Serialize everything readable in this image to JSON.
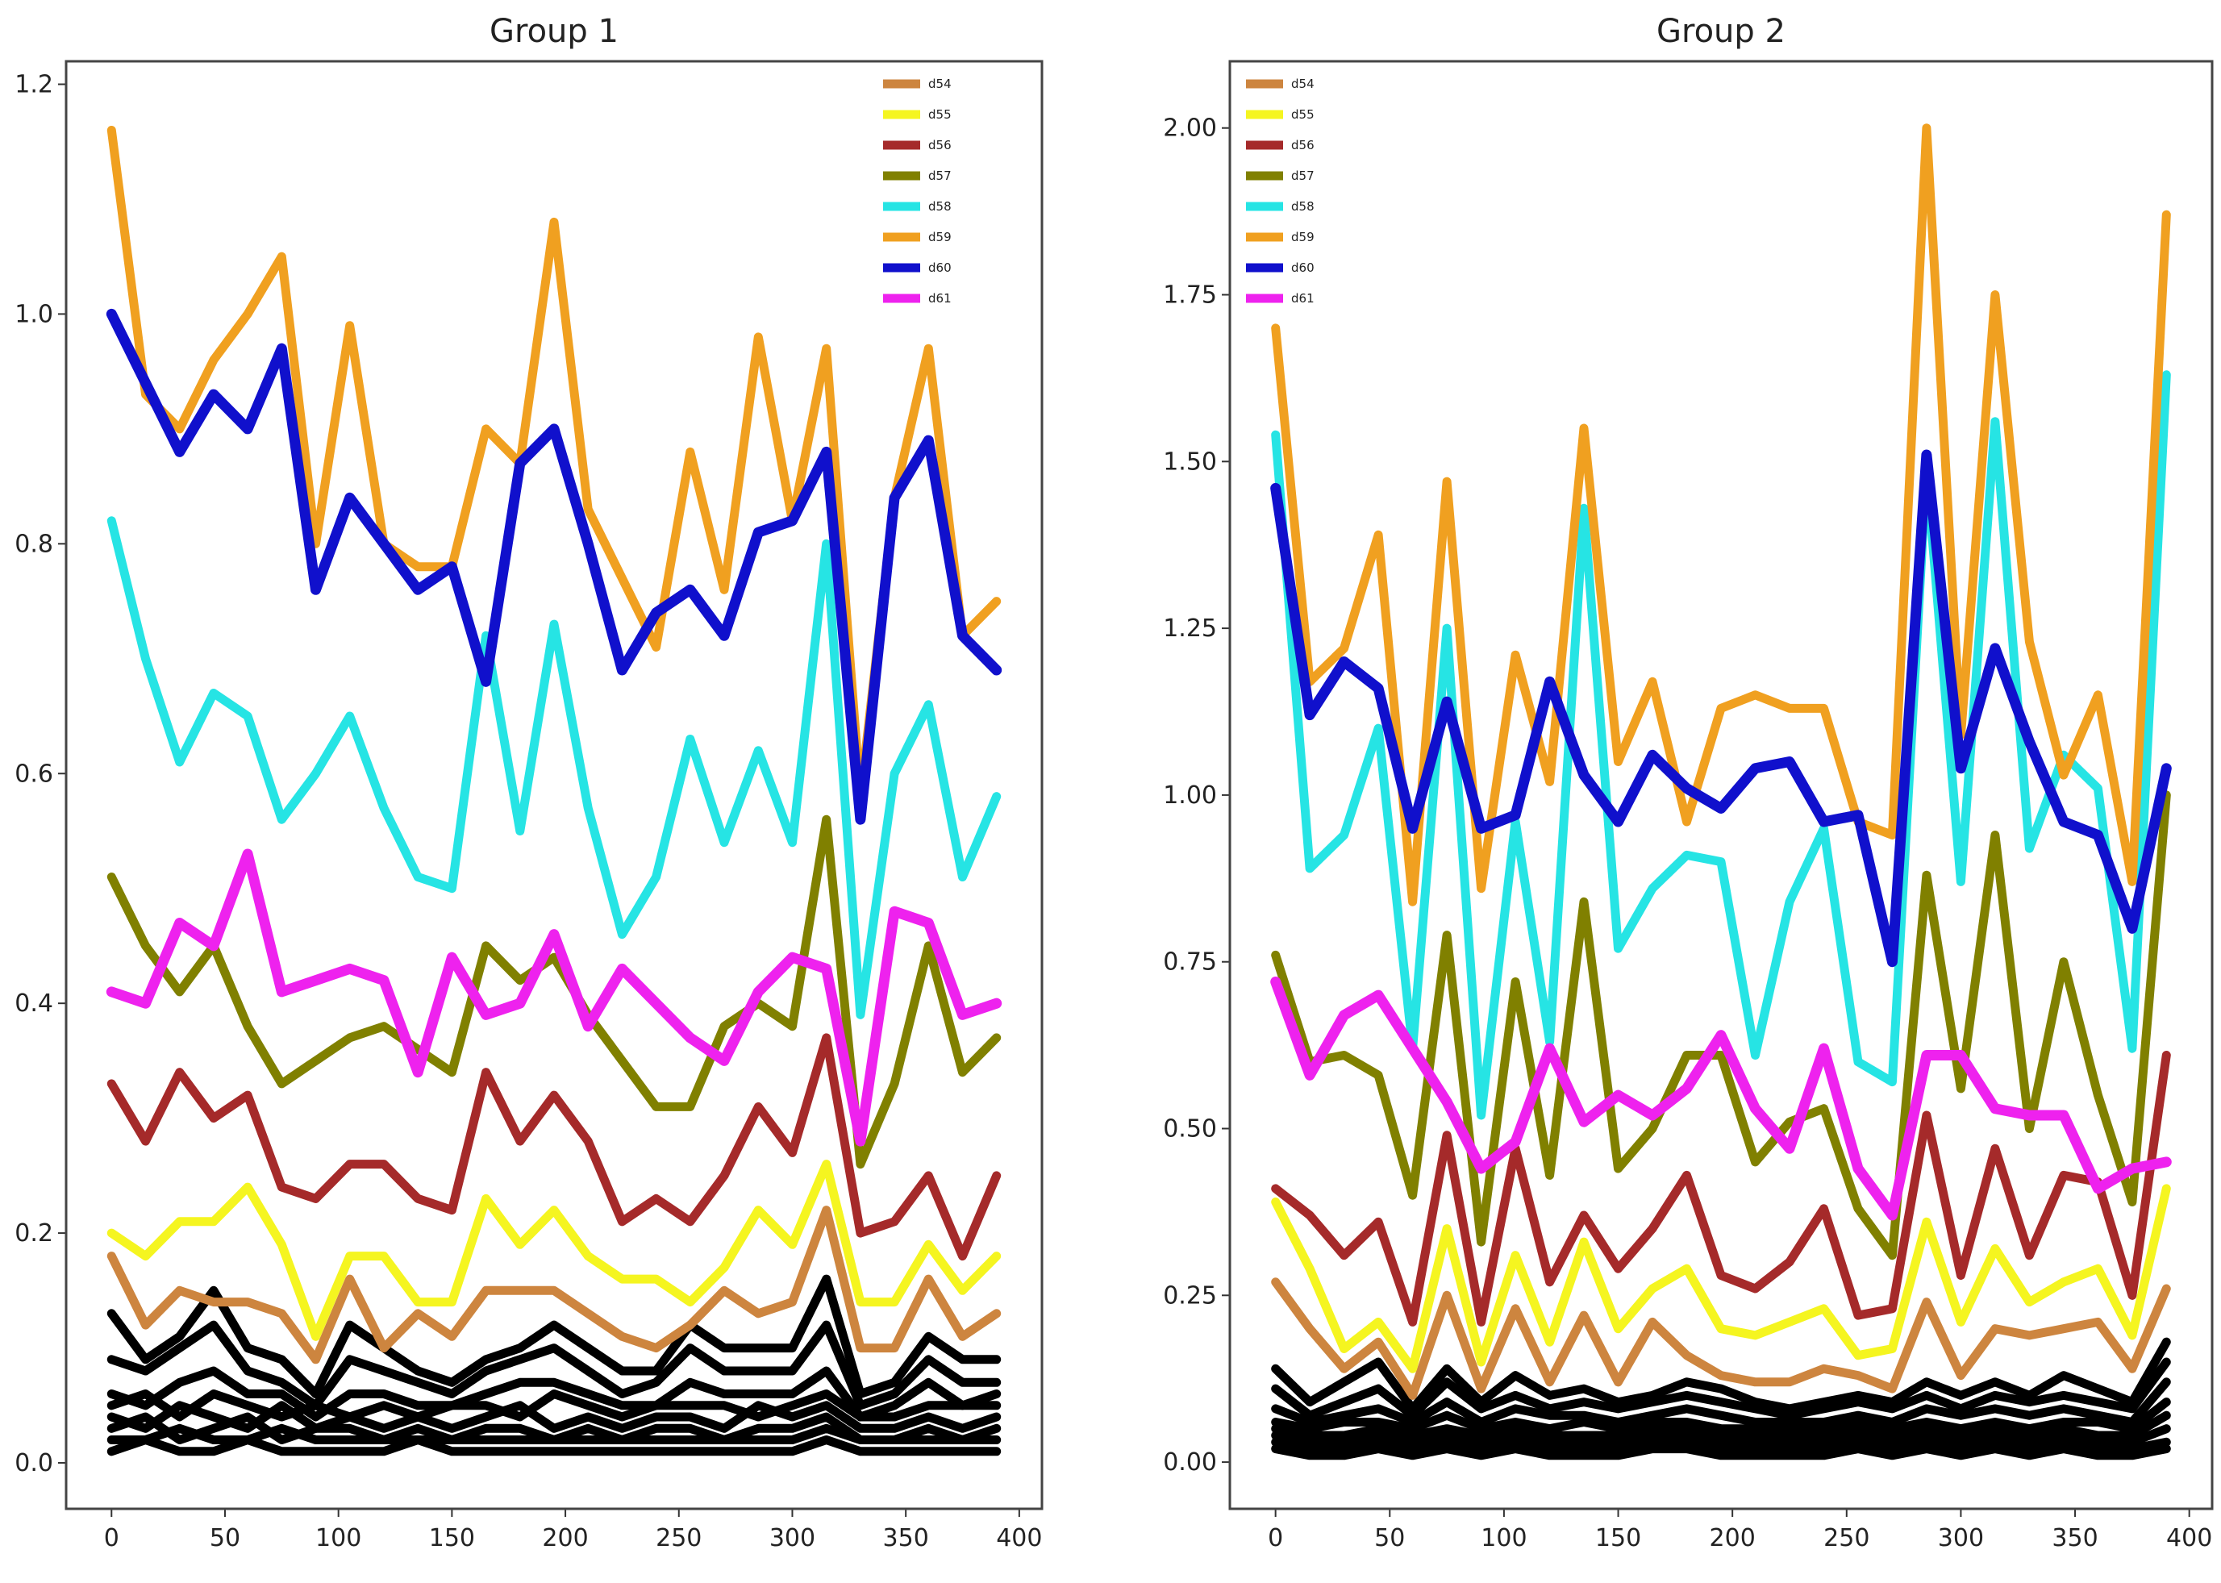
{
  "chart_data": [
    {
      "type": "line",
      "title": "Group 1",
      "xlabel": "",
      "ylabel": "",
      "xlim": [
        -20,
        410
      ],
      "ylim": [
        -0.04,
        1.22
      ],
      "xticks": [
        0,
        50,
        100,
        150,
        200,
        250,
        300,
        350,
        400
      ],
      "yticks": [
        0.0,
        0.2,
        0.4,
        0.6,
        0.8,
        1.0,
        1.2
      ],
      "ytick_decimals": 1,
      "grid": false,
      "legend": {
        "placement": "top-right",
        "entries": [
          "d54",
          "d55",
          "d56",
          "d57",
          "d58",
          "d59",
          "d60",
          "d61"
        ]
      },
      "x": [
        0,
        15,
        30,
        45,
        60,
        75,
        90,
        105,
        120,
        135,
        150,
        165,
        180,
        195,
        210,
        225,
        240,
        255,
        270,
        285,
        300,
        315,
        330,
        345,
        360,
        375,
        390
      ],
      "series": [
        {
          "name": "d54",
          "color": "#cd853f",
          "values": [
            0.18,
            0.12,
            0.15,
            0.14,
            0.14,
            0.13,
            0.09,
            0.16,
            0.1,
            0.13,
            0.11,
            0.15,
            0.15,
            0.15,
            0.13,
            0.11,
            0.1,
            0.12,
            0.15,
            0.13,
            0.14,
            0.22,
            0.1,
            0.1,
            0.16,
            0.11,
            0.13
          ]
        },
        {
          "name": "d55",
          "color": "#f5f520",
          "values": [
            0.2,
            0.18,
            0.21,
            0.21,
            0.24,
            0.19,
            0.11,
            0.18,
            0.18,
            0.14,
            0.14,
            0.23,
            0.19,
            0.22,
            0.18,
            0.16,
            0.16,
            0.14,
            0.17,
            0.22,
            0.19,
            0.26,
            0.14,
            0.14,
            0.19,
            0.15,
            0.18
          ]
        },
        {
          "name": "d56",
          "color": "#a52a2a",
          "values": [
            0.33,
            0.28,
            0.34,
            0.3,
            0.32,
            0.24,
            0.23,
            0.26,
            0.26,
            0.23,
            0.22,
            0.34,
            0.28,
            0.32,
            0.28,
            0.21,
            0.23,
            0.21,
            0.25,
            0.31,
            0.27,
            0.37,
            0.2,
            0.21,
            0.25,
            0.18,
            0.25
          ]
        },
        {
          "name": "d57",
          "color": "#808000",
          "values": [
            0.51,
            0.45,
            0.41,
            0.45,
            0.38,
            0.33,
            0.35,
            0.37,
            0.38,
            0.36,
            0.34,
            0.45,
            0.42,
            0.44,
            0.39,
            0.35,
            0.31,
            0.31,
            0.38,
            0.4,
            0.38,
            0.56,
            0.26,
            0.33,
            0.45,
            0.34,
            0.37
          ]
        },
        {
          "name": "d58",
          "color": "#26e4e4",
          "values": [
            0.82,
            0.7,
            0.61,
            0.67,
            0.65,
            0.56,
            0.6,
            0.65,
            0.57,
            0.51,
            0.5,
            0.72,
            0.55,
            0.73,
            0.57,
            0.46,
            0.51,
            0.63,
            0.54,
            0.62,
            0.54,
            0.8,
            0.39,
            0.6,
            0.66,
            0.51,
            0.58
          ]
        },
        {
          "name": "d59",
          "color": "#f0a020",
          "values": [
            1.16,
            0.93,
            0.9,
            0.96,
            1.0,
            1.05,
            0.8,
            0.99,
            0.8,
            0.78,
            0.78,
            0.9,
            0.87,
            1.08,
            0.83,
            0.77,
            0.71,
            0.88,
            0.76,
            0.98,
            0.82,
            0.97,
            0.58,
            0.84,
            0.97,
            0.72,
            0.75
          ]
        },
        {
          "name": "d60",
          "color": "#1010cc",
          "values": [
            1.0,
            0.94,
            0.88,
            0.93,
            0.9,
            0.97,
            0.76,
            0.84,
            0.8,
            0.76,
            0.78,
            0.68,
            0.87,
            0.9,
            0.8,
            0.69,
            0.74,
            0.76,
            0.72,
            0.81,
            0.82,
            0.88,
            0.56,
            0.84,
            0.89,
            0.72,
            0.69
          ]
        },
        {
          "name": "d61",
          "color": "#ee22ee",
          "values": [
            0.41,
            0.4,
            0.47,
            0.45,
            0.53,
            0.41,
            0.42,
            0.43,
            0.42,
            0.34,
            0.44,
            0.39,
            0.4,
            0.46,
            0.38,
            0.43,
            0.4,
            0.37,
            0.35,
            0.41,
            0.44,
            0.43,
            0.28,
            0.48,
            0.47,
            0.39,
            0.4
          ]
        }
      ],
      "background_series_color": "#000000",
      "background_series": [
        [
          0.13,
          0.09,
          0.11,
          0.15,
          0.1,
          0.09,
          0.06,
          0.12,
          0.1,
          0.08,
          0.07,
          0.09,
          0.1,
          0.12,
          0.1,
          0.08,
          0.08,
          0.12,
          0.1,
          0.1,
          0.1,
          0.16,
          0.06,
          0.07,
          0.11,
          0.09,
          0.09
        ],
        [
          0.09,
          0.08,
          0.1,
          0.12,
          0.08,
          0.07,
          0.05,
          0.09,
          0.08,
          0.07,
          0.06,
          0.08,
          0.09,
          0.1,
          0.08,
          0.06,
          0.07,
          0.1,
          0.08,
          0.08,
          0.08,
          0.12,
          0.05,
          0.06,
          0.09,
          0.07,
          0.07
        ],
        [
          0.06,
          0.05,
          0.07,
          0.08,
          0.06,
          0.06,
          0.04,
          0.06,
          0.06,
          0.05,
          0.05,
          0.06,
          0.07,
          0.07,
          0.06,
          0.05,
          0.05,
          0.07,
          0.06,
          0.06,
          0.06,
          0.08,
          0.04,
          0.05,
          0.07,
          0.05,
          0.06
        ],
        [
          0.05,
          0.06,
          0.04,
          0.06,
          0.05,
          0.04,
          0.05,
          0.04,
          0.05,
          0.04,
          0.05,
          0.05,
          0.04,
          0.06,
          0.05,
          0.04,
          0.05,
          0.05,
          0.05,
          0.04,
          0.05,
          0.06,
          0.04,
          0.04,
          0.05,
          0.05,
          0.05
        ],
        [
          0.04,
          0.03,
          0.05,
          0.04,
          0.03,
          0.05,
          0.03,
          0.04,
          0.03,
          0.04,
          0.03,
          0.04,
          0.05,
          0.03,
          0.04,
          0.03,
          0.04,
          0.04,
          0.03,
          0.05,
          0.04,
          0.05,
          0.03,
          0.03,
          0.04,
          0.03,
          0.04
        ],
        [
          0.03,
          0.04,
          0.02,
          0.03,
          0.04,
          0.02,
          0.03,
          0.03,
          0.02,
          0.03,
          0.02,
          0.03,
          0.03,
          0.02,
          0.03,
          0.02,
          0.03,
          0.03,
          0.02,
          0.03,
          0.03,
          0.04,
          0.02,
          0.02,
          0.03,
          0.02,
          0.03
        ],
        [
          0.02,
          0.02,
          0.03,
          0.02,
          0.02,
          0.03,
          0.02,
          0.02,
          0.02,
          0.02,
          0.02,
          0.02,
          0.02,
          0.02,
          0.02,
          0.02,
          0.02,
          0.02,
          0.02,
          0.02,
          0.02,
          0.03,
          0.02,
          0.02,
          0.02,
          0.02,
          0.02
        ],
        [
          0.01,
          0.02,
          0.01,
          0.01,
          0.02,
          0.01,
          0.01,
          0.01,
          0.01,
          0.02,
          0.01,
          0.01,
          0.01,
          0.01,
          0.01,
          0.01,
          0.01,
          0.01,
          0.01,
          0.01,
          0.01,
          0.02,
          0.01,
          0.01,
          0.01,
          0.01,
          0.01
        ]
      ]
    },
    {
      "type": "line",
      "title": "Group 2",
      "xlabel": "",
      "ylabel": "",
      "xlim": [
        -20,
        410
      ],
      "ylim": [
        -0.07,
        2.1
      ],
      "xticks": [
        0,
        50,
        100,
        150,
        200,
        250,
        300,
        350,
        400
      ],
      "yticks": [
        0.0,
        0.25,
        0.5,
        0.75,
        1.0,
        1.25,
        1.5,
        1.75,
        2.0
      ],
      "ytick_decimals": 2,
      "grid": false,
      "legend": {
        "placement": "top-left",
        "entries": [
          "d54",
          "d55",
          "d56",
          "d57",
          "d58",
          "d59",
          "d60",
          "d61"
        ]
      },
      "x": [
        0,
        15,
        30,
        45,
        60,
        75,
        90,
        105,
        120,
        135,
        150,
        165,
        180,
        195,
        210,
        225,
        240,
        255,
        270,
        285,
        300,
        315,
        330,
        345,
        360,
        375,
        390
      ],
      "series": [
        {
          "name": "d54",
          "color": "#cd853f",
          "values": [
            0.27,
            0.2,
            0.14,
            0.18,
            0.1,
            0.25,
            0.11,
            0.23,
            0.12,
            0.22,
            0.12,
            0.21,
            0.16,
            0.13,
            0.12,
            0.12,
            0.14,
            0.13,
            0.11,
            0.24,
            0.13,
            0.2,
            0.19,
            0.2,
            0.21,
            0.14,
            0.26
          ]
        },
        {
          "name": "d55",
          "color": "#f5f520",
          "values": [
            0.39,
            0.29,
            0.17,
            0.21,
            0.14,
            0.35,
            0.15,
            0.31,
            0.18,
            0.33,
            0.2,
            0.26,
            0.29,
            0.2,
            0.19,
            0.21,
            0.23,
            0.16,
            0.17,
            0.36,
            0.21,
            0.32,
            0.24,
            0.27,
            0.29,
            0.19,
            0.41
          ]
        },
        {
          "name": "d56",
          "color": "#a52a2a",
          "values": [
            0.41,
            0.37,
            0.31,
            0.36,
            0.21,
            0.49,
            0.21,
            0.47,
            0.27,
            0.37,
            0.29,
            0.35,
            0.43,
            0.28,
            0.26,
            0.3,
            0.38,
            0.22,
            0.23,
            0.52,
            0.28,
            0.47,
            0.31,
            0.43,
            0.42,
            0.25,
            0.61
          ]
        },
        {
          "name": "d57",
          "color": "#808000",
          "values": [
            0.76,
            0.6,
            0.61,
            0.58,
            0.4,
            0.79,
            0.33,
            0.72,
            0.43,
            0.84,
            0.44,
            0.5,
            0.61,
            0.61,
            0.45,
            0.51,
            0.53,
            0.38,
            0.31,
            0.88,
            0.56,
            0.94,
            0.5,
            0.75,
            0.55,
            0.39,
            1.0
          ]
        },
        {
          "name": "d58",
          "color": "#26e4e4",
          "values": [
            1.54,
            0.89,
            0.94,
            1.1,
            0.62,
            1.25,
            0.52,
            0.96,
            0.63,
            1.43,
            0.77,
            0.86,
            0.91,
            0.9,
            0.61,
            0.84,
            0.95,
            0.6,
            0.57,
            1.49,
            0.87,
            1.56,
            0.92,
            1.06,
            1.01,
            0.62,
            1.63
          ]
        },
        {
          "name": "d59",
          "color": "#f0a020",
          "values": [
            1.7,
            1.17,
            1.22,
            1.39,
            0.84,
            1.47,
            0.86,
            1.21,
            1.02,
            1.55,
            1.05,
            1.17,
            0.96,
            1.13,
            1.15,
            1.13,
            1.13,
            0.96,
            0.94,
            2.0,
            1.09,
            1.75,
            1.23,
            1.03,
            1.15,
            0.87,
            1.87
          ]
        },
        {
          "name": "d60",
          "color": "#1010cc",
          "values": [
            1.46,
            1.12,
            1.2,
            1.16,
            0.95,
            1.14,
            0.95,
            0.97,
            1.17,
            1.03,
            0.96,
            1.06,
            1.01,
            0.98,
            1.04,
            1.05,
            0.96,
            0.97,
            0.75,
            1.51,
            1.04,
            1.22,
            1.08,
            0.96,
            0.94,
            0.8,
            1.04
          ]
        },
        {
          "name": "d61",
          "color": "#ee22ee",
          "values": [
            0.72,
            0.58,
            0.67,
            0.7,
            0.62,
            0.54,
            0.44,
            0.48,
            0.62,
            0.51,
            0.55,
            0.52,
            0.56,
            0.64,
            0.53,
            0.47,
            0.62,
            0.44,
            0.37,
            0.61,
            0.61,
            0.53,
            0.52,
            0.52,
            0.41,
            0.44,
            0.45
          ]
        }
      ],
      "background_series_color": "#000000",
      "background_series": [
        [
          0.14,
          0.09,
          0.12,
          0.15,
          0.08,
          0.14,
          0.09,
          0.13,
          0.1,
          0.11,
          0.09,
          0.1,
          0.12,
          0.11,
          0.09,
          0.08,
          0.09,
          0.1,
          0.09,
          0.12,
          0.1,
          0.12,
          0.1,
          0.13,
          0.11,
          0.09,
          0.18
        ],
        [
          0.11,
          0.07,
          0.09,
          0.11,
          0.07,
          0.12,
          0.08,
          0.1,
          0.08,
          0.09,
          0.08,
          0.09,
          0.1,
          0.09,
          0.08,
          0.07,
          0.08,
          0.09,
          0.08,
          0.1,
          0.08,
          0.1,
          0.09,
          0.1,
          0.09,
          0.08,
          0.15
        ],
        [
          0.08,
          0.06,
          0.07,
          0.08,
          0.06,
          0.09,
          0.06,
          0.08,
          0.07,
          0.07,
          0.06,
          0.07,
          0.08,
          0.07,
          0.06,
          0.06,
          0.06,
          0.07,
          0.06,
          0.08,
          0.07,
          0.08,
          0.07,
          0.08,
          0.07,
          0.06,
          0.12
        ],
        [
          0.06,
          0.05,
          0.06,
          0.06,
          0.05,
          0.07,
          0.05,
          0.06,
          0.05,
          0.06,
          0.05,
          0.06,
          0.06,
          0.05,
          0.05,
          0.05,
          0.05,
          0.06,
          0.05,
          0.06,
          0.05,
          0.06,
          0.05,
          0.06,
          0.06,
          0.05,
          0.09
        ],
        [
          0.05,
          0.04,
          0.04,
          0.05,
          0.04,
          0.05,
          0.04,
          0.05,
          0.04,
          0.04,
          0.04,
          0.05,
          0.05,
          0.04,
          0.04,
          0.04,
          0.04,
          0.05,
          0.04,
          0.05,
          0.04,
          0.05,
          0.04,
          0.05,
          0.04,
          0.04,
          0.07
        ],
        [
          0.04,
          0.03,
          0.03,
          0.04,
          0.03,
          0.04,
          0.03,
          0.04,
          0.03,
          0.03,
          0.03,
          0.04,
          0.04,
          0.03,
          0.03,
          0.03,
          0.03,
          0.04,
          0.03,
          0.04,
          0.03,
          0.04,
          0.03,
          0.04,
          0.03,
          0.03,
          0.05
        ],
        [
          0.03,
          0.02,
          0.02,
          0.03,
          0.02,
          0.03,
          0.02,
          0.03,
          0.02,
          0.02,
          0.02,
          0.03,
          0.03,
          0.02,
          0.02,
          0.02,
          0.02,
          0.03,
          0.02,
          0.03,
          0.02,
          0.03,
          0.02,
          0.03,
          0.02,
          0.02,
          0.03
        ],
        [
          0.02,
          0.01,
          0.01,
          0.02,
          0.01,
          0.02,
          0.01,
          0.02,
          0.01,
          0.01,
          0.01,
          0.02,
          0.02,
          0.01,
          0.01,
          0.01,
          0.01,
          0.02,
          0.01,
          0.02,
          0.01,
          0.02,
          0.01,
          0.02,
          0.01,
          0.01,
          0.02
        ]
      ]
    }
  ]
}
